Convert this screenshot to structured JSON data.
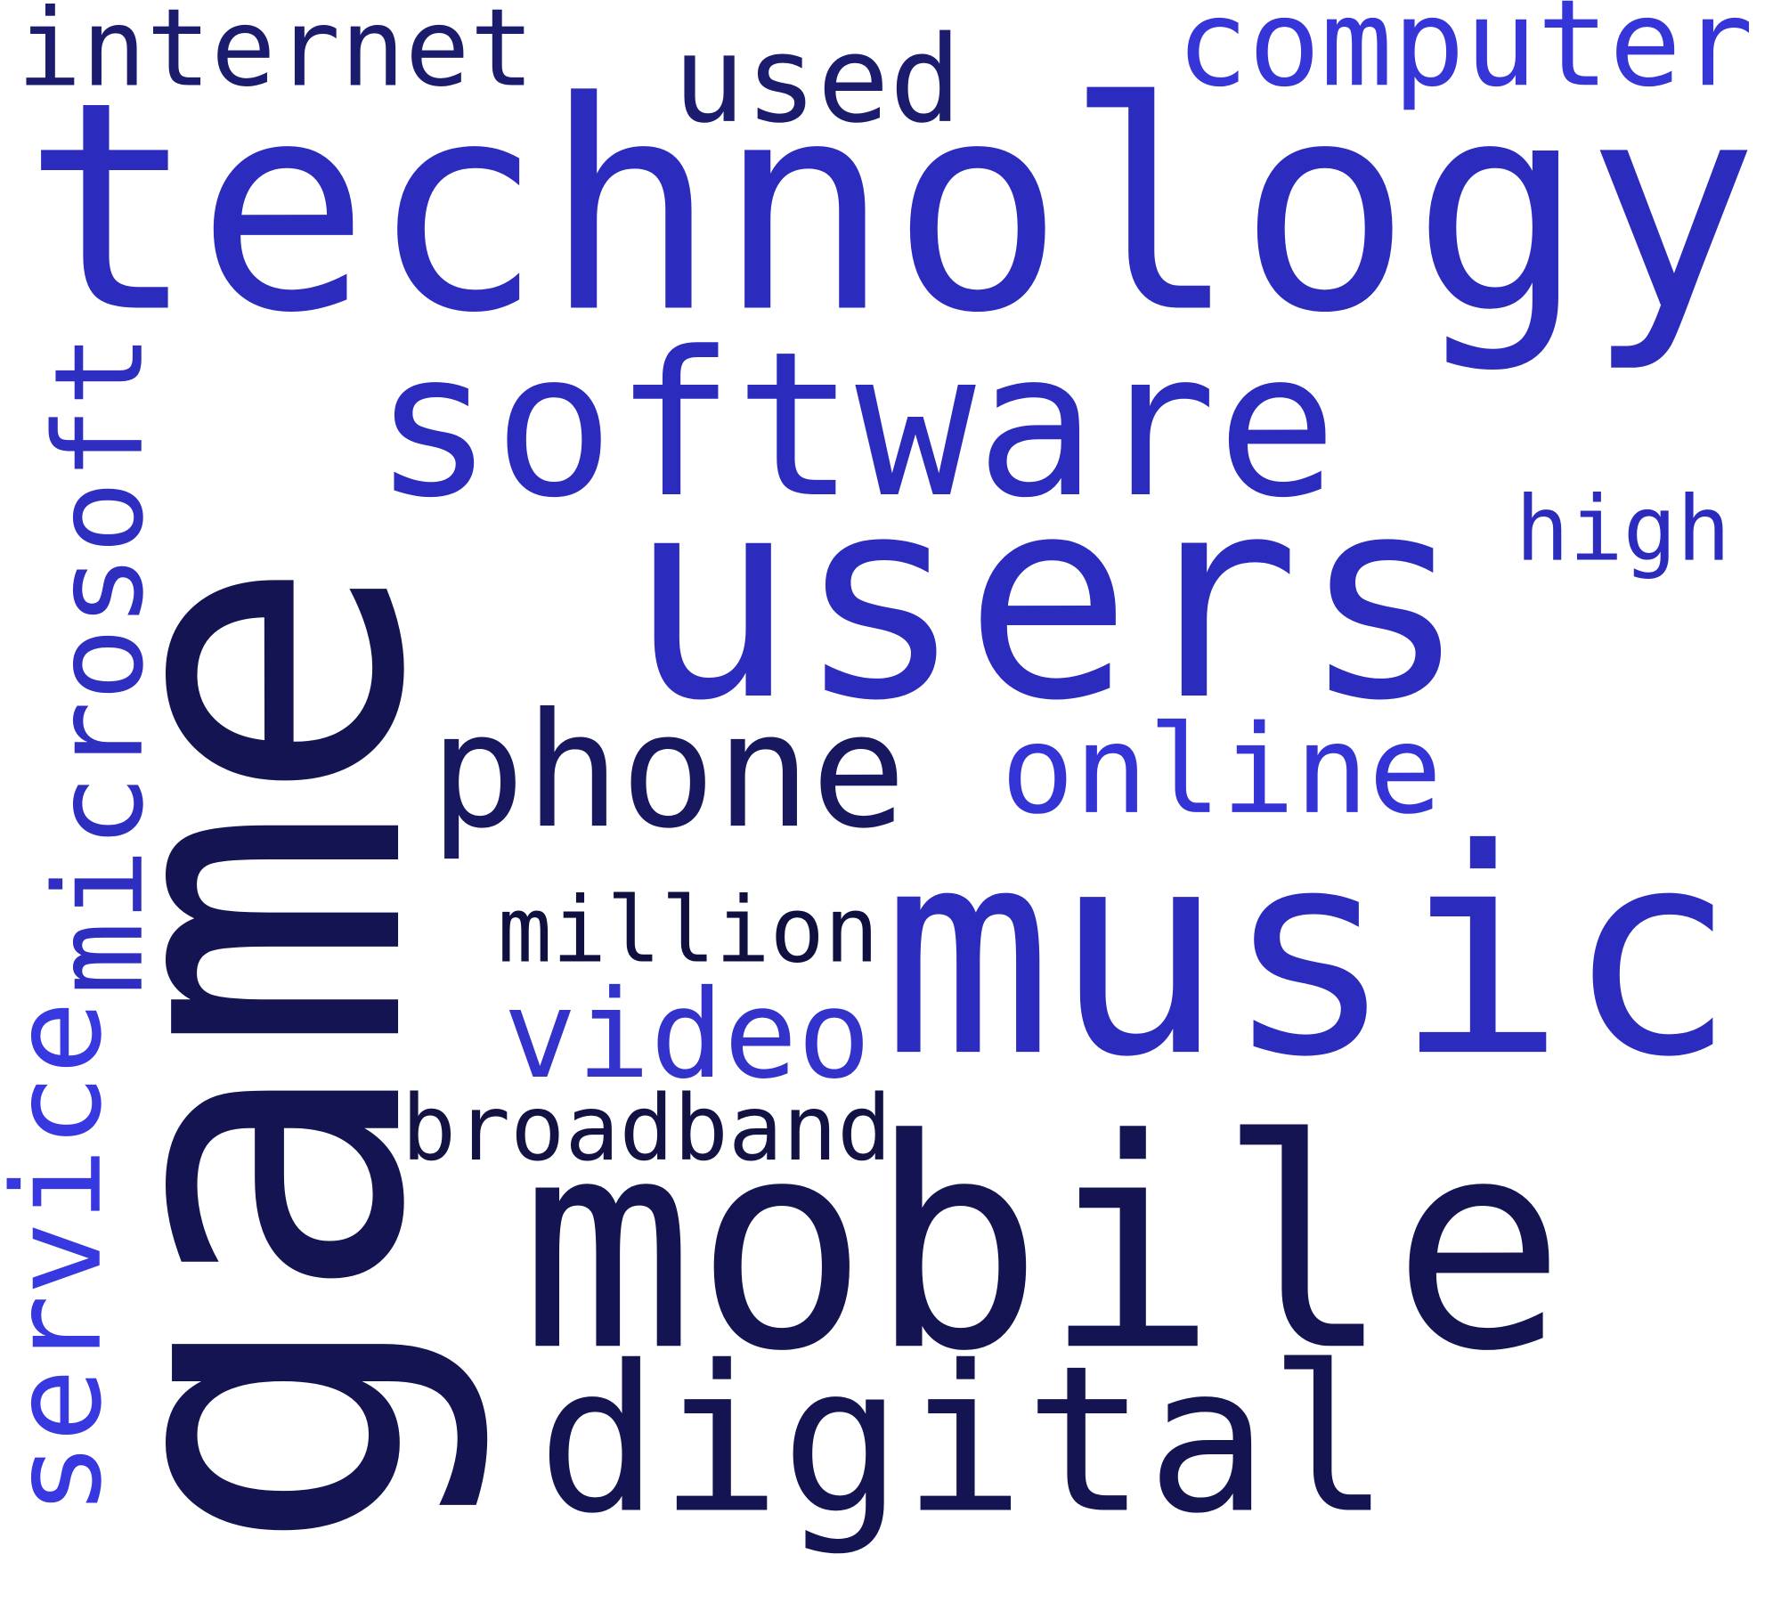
{
  "words": [
    "internet",
    "technology",
    "used",
    "computer",
    "software",
    "high",
    "users",
    "phone",
    "online",
    "music",
    "million",
    "video",
    "broadband",
    "mobile",
    "digital",
    "game",
    "microsoft",
    "service"
  ]
}
